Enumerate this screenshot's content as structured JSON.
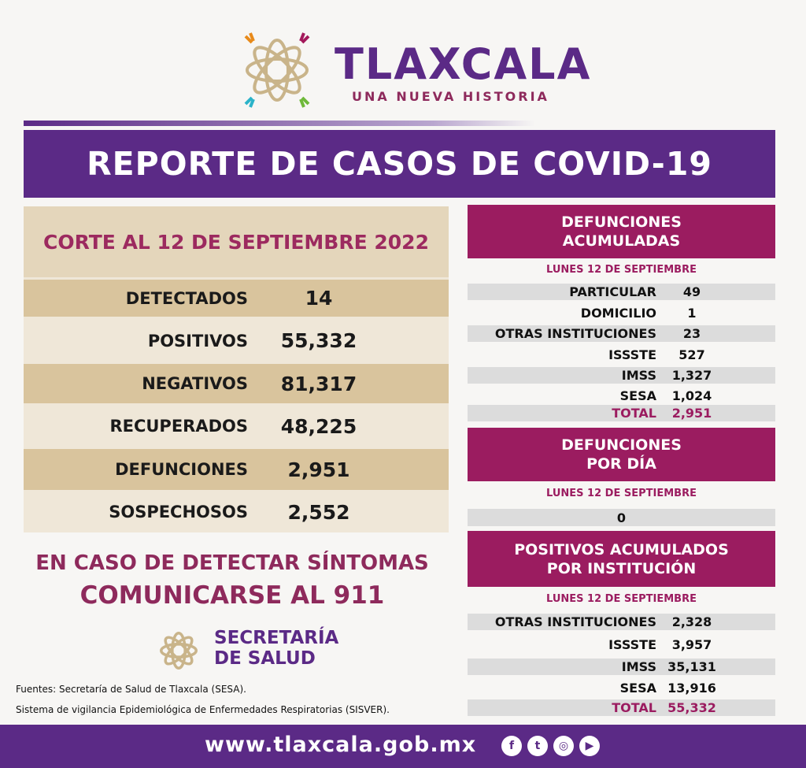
{
  "header": {
    "title": "TLAXCALA",
    "subtitle": "UNA NUEVA HISTORIA",
    "banner": "REPORTE DE CASOS DE COVID-19"
  },
  "summary": {
    "corte": "CORTE AL 12 DE SEPTIEMBRE 2022",
    "rows": [
      {
        "label": "DETECTADOS",
        "value": "14"
      },
      {
        "label": "POSITIVOS",
        "value": "55,332"
      },
      {
        "label": "NEGATIVOS",
        "value": "81,317"
      },
      {
        "label": "RECUPERADOS",
        "value": "48,225"
      },
      {
        "label": "DEFUNCIONES",
        "value": "2,951"
      },
      {
        "label": "SOSPECHOSOS",
        "value": "2,552"
      }
    ]
  },
  "def_acum": {
    "title1": "DEFUNCIONES",
    "title2": "ACUMULADAS",
    "date": "LUNES 12 DE SEPTIEMBRE",
    "rows": [
      {
        "label": "PARTICULAR",
        "value": "49"
      },
      {
        "label": "DOMICILIO",
        "value": "1"
      },
      {
        "label": "OTRAS INSTITUCIONES",
        "value": "23"
      },
      {
        "label": "ISSSTE",
        "value": "527"
      },
      {
        "label": "IMSS",
        "value": "1,327"
      },
      {
        "label": "SESA",
        "value": "1,024"
      },
      {
        "label": "TOTAL",
        "value": "2,951"
      }
    ]
  },
  "def_dia": {
    "title1": "DEFUNCIONES",
    "title2": "POR DÍA",
    "date": "LUNES 12 DE SEPTIEMBRE",
    "value": "0"
  },
  "pos_inst": {
    "title1": "POSITIVOS ACUMULADOS",
    "title2": "POR INSTITUCIÓN",
    "date": "LUNES 12 DE SEPTIEMBRE",
    "rows": [
      {
        "label": "OTRAS INSTITUCIONES",
        "value": "2,328"
      },
      {
        "label": "ISSSTE",
        "value": "3,957"
      },
      {
        "label": "IMSS",
        "value": "35,131"
      },
      {
        "label": "SESA",
        "value": "13,916"
      },
      {
        "label": "TOTAL",
        "value": "55,332"
      }
    ]
  },
  "cta": {
    "line1": "EN CASO DE DETECTAR SÍNTOMAS",
    "line2": "COMUNICARSE AL 911"
  },
  "secretaria": {
    "line1": "SECRETARÍA",
    "line2": "DE SALUD"
  },
  "sources": {
    "line1": "Fuentes:  Secretaría de Salud de Tlaxcala (SESA).",
    "line2": "Sistema de vigilancia Epidemiológica de Enfermedades Respiratorias (SISVER)."
  },
  "footer": {
    "url": "www.tlaxcala.gob.mx",
    "social": [
      "facebook-icon",
      "twitter-icon",
      "instagram-icon",
      "youtube-icon"
    ]
  },
  "colors": {
    "purple": "#5b2a86",
    "magenta": "#9b1c60",
    "tan": "#d9c49d",
    "gray": "#dcdcdc"
  }
}
